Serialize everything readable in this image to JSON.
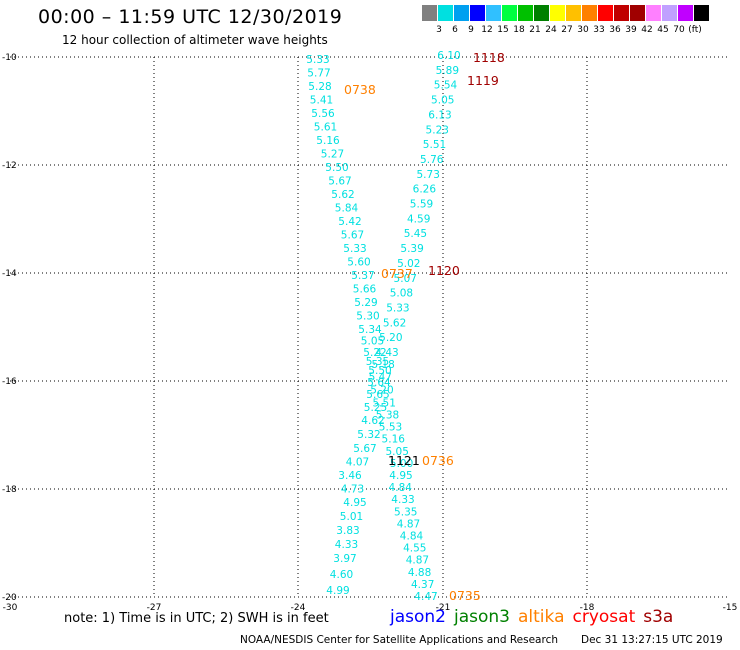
{
  "header": {
    "title": "00:00 – 11:59 UTC 12/30/2019",
    "subtitle": "12 hour collection of altimeter wave heights"
  },
  "colorbar": {
    "colors": [
      "#808080",
      "#00e0e0",
      "#00a0f0",
      "#0000ff",
      "#30c0ff",
      "#00ff40",
      "#00c000",
      "#008000",
      "#ffff00",
      "#ffc000",
      "#ff8000",
      "#ff0000",
      "#c00000",
      "#a00000",
      "#ff80ff",
      "#c0a0ff",
      "#c000ff",
      "#000000"
    ],
    "labels": [
      "3",
      "6",
      "9",
      "12",
      "15",
      "18",
      "21",
      "24",
      "27",
      "30",
      "33",
      "36",
      "39",
      "42",
      "45",
      "70",
      "(ft)"
    ]
  },
  "axes": {
    "x_labels": [
      "-30",
      "-27",
      "-24",
      "-21",
      "-18",
      "-15"
    ],
    "y_labels": [
      "-10",
      "-12",
      "-14",
      "-16",
      "-18",
      "-20"
    ]
  },
  "tracks": {
    "cyan_color": "#00e0e0",
    "left_track": [
      "5.33",
      "5.77",
      "5.28",
      "5.41",
      "5.56",
      "5.61",
      "5.16",
      "5.27",
      "5.50",
      "5.67",
      "5.62",
      "5.84",
      "5.42",
      "5.67",
      "5.33",
      "5.60",
      "5.37",
      "5.66",
      "5.29",
      "5.30",
      "5.34",
      "5.05",
      "5.22",
      "5.35",
      "5.50",
      "5.64",
      "5.65",
      "5.25",
      "4.62",
      "5.32",
      "5.67",
      "4.07",
      "3.46",
      "4.73",
      "4.95",
      "5.01",
      "3.83",
      "4.33",
      "3.97",
      "4.60",
      "4.99"
    ],
    "right_track": [
      "6.10",
      "5.89",
      "5.54",
      "5.05",
      "6.13",
      "5.23",
      "5.51",
      "5.76",
      "5.73",
      "6.26",
      "5.59",
      "4.59",
      "5.45",
      "5.39",
      "5.02",
      "5.07",
      "5.08",
      "5.33",
      "5.62",
      "5.20",
      "4.43",
      "5.18",
      "5.47",
      "5.20",
      "5.51",
      "5.38",
      "5.53",
      "5.16",
      "5.05",
      "5.00",
      "4.95",
      "4.84",
      "4.33",
      "5.35",
      "4.87",
      "4.84",
      "4.55",
      "4.87",
      "4.88",
      "4.37",
      "4.47"
    ],
    "green_value": "5.35"
  },
  "times": [
    {
      "label": "1118",
      "color": "#a00000"
    },
    {
      "label": "1119",
      "color": "#a00000"
    },
    {
      "label": "0738",
      "color": "#ff8000"
    },
    {
      "label": "0737",
      "color": "#ff8000"
    },
    {
      "label": "1120",
      "color": "#a00000"
    },
    {
      "label": "1121",
      "color": "#000000"
    },
    {
      "label": "0736",
      "color": "#ff8000"
    },
    {
      "label": "0735",
      "color": "#ff8000"
    }
  ],
  "footer": {
    "note": "note: 1) Time is in UTC; 2) SWH is in feet",
    "satellites": [
      {
        "name": "jason2",
        "color": "#0000ff"
      },
      {
        "name": "jason3",
        "color": "#008000"
      },
      {
        "name": "altika",
        "color": "#ff8000"
      },
      {
        "name": "cryosat",
        "color": "#ff0000"
      },
      {
        "name": "s3a",
        "color": "#a00000"
      }
    ],
    "credit": "NOAA/NESDIS Center for Satellite Applications and Research",
    "timestamp": "Dec 31 13:27:15 UTC 2019"
  }
}
